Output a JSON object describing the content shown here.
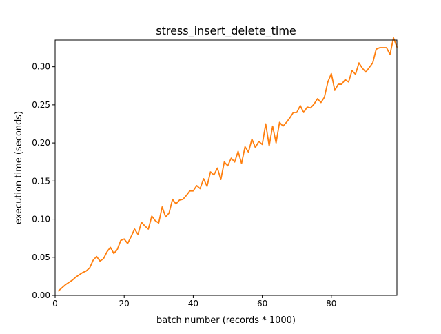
{
  "chart_data": {
    "type": "line",
    "title": "stress_insert_delete_time",
    "xlabel": "batch number (records * 1000)",
    "ylabel": "execution time (seconds)",
    "xlim": [
      0,
      99
    ],
    "ylim": [
      0,
      0.335
    ],
    "xticks": [
      0,
      20,
      40,
      60,
      80
    ],
    "xtick_labels": [
      "0",
      "20",
      "40",
      "60",
      "80"
    ],
    "yticks": [
      0.0,
      0.05,
      0.1,
      0.15,
      0.2,
      0.25,
      0.3
    ],
    "ytick_labels": [
      "0.00",
      "0.05",
      "0.10",
      "0.15",
      "0.20",
      "0.25",
      "0.30"
    ],
    "grid": false,
    "legend": "none",
    "series": [
      {
        "color": "#ff7f0e",
        "x": [
          1,
          2,
          3,
          4,
          5,
          6,
          7,
          8,
          9,
          10,
          11,
          12,
          13,
          14,
          15,
          16,
          17,
          18,
          19,
          20,
          21,
          22,
          23,
          24,
          25,
          26,
          27,
          28,
          29,
          30,
          31,
          32,
          33,
          34,
          35,
          36,
          37,
          38,
          39,
          40,
          41,
          42,
          43,
          44,
          45,
          46,
          47,
          48,
          49,
          50,
          51,
          52,
          53,
          54,
          55,
          56,
          57,
          58,
          59,
          60,
          61,
          62,
          63,
          64,
          65,
          66,
          67,
          68,
          69,
          70,
          71,
          72,
          73,
          74,
          75,
          76,
          77,
          78,
          79,
          80,
          81,
          82,
          83,
          84,
          85,
          86,
          87,
          88,
          89,
          90,
          91,
          92,
          93,
          94,
          95,
          96,
          97,
          98,
          99
        ],
        "y": [
          0.006,
          0.01,
          0.014,
          0.017,
          0.02,
          0.024,
          0.027,
          0.03,
          0.032,
          0.036,
          0.046,
          0.051,
          0.045,
          0.048,
          0.057,
          0.063,
          0.055,
          0.06,
          0.072,
          0.074,
          0.068,
          0.077,
          0.087,
          0.08,
          0.096,
          0.091,
          0.087,
          0.104,
          0.098,
          0.095,
          0.116,
          0.103,
          0.108,
          0.126,
          0.12,
          0.125,
          0.126,
          0.131,
          0.137,
          0.137,
          0.144,
          0.14,
          0.153,
          0.143,
          0.162,
          0.158,
          0.167,
          0.152,
          0.175,
          0.17,
          0.18,
          0.175,
          0.189,
          0.173,
          0.195,
          0.188,
          0.205,
          0.194,
          0.202,
          0.198,
          0.225,
          0.196,
          0.222,
          0.2,
          0.227,
          0.222,
          0.227,
          0.233,
          0.24,
          0.24,
          0.249,
          0.24,
          0.247,
          0.246,
          0.251,
          0.258,
          0.253,
          0.26,
          0.28,
          0.291,
          0.269,
          0.277,
          0.277,
          0.283,
          0.28,
          0.295,
          0.29,
          0.305,
          0.298,
          0.293,
          0.299,
          0.305,
          0.323,
          0.325,
          0.325,
          0.325,
          0.316,
          0.338,
          0.326
        ]
      }
    ]
  }
}
